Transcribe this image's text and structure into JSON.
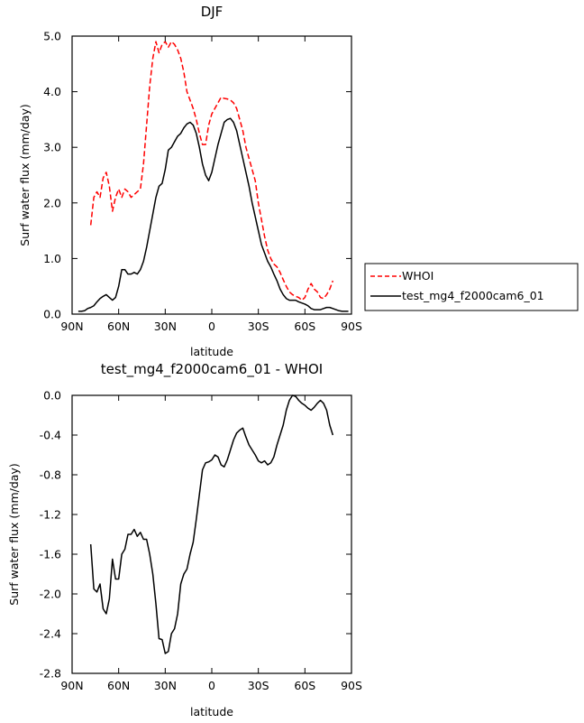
{
  "chart_data": [
    {
      "type": "line",
      "title": "DJF",
      "xlabel": "latitude",
      "ylabel": "Surf water flux (mm/day)",
      "xlim": [
        90,
        -90
      ],
      "ylim": [
        0,
        5
      ],
      "x_ticks": [
        90,
        60,
        30,
        0,
        -30,
        -60,
        -90
      ],
      "x_tick_labels": [
        "90N",
        "60N",
        "30N",
        "0",
        "30S",
        "60S",
        "90S"
      ],
      "y_ticks": [
        0,
        1,
        2,
        3,
        4,
        5
      ],
      "y_tick_labels": [
        "0.0",
        "1.0",
        "2.0",
        "3.0",
        "4.0",
        "5.0"
      ],
      "legend_position": "right",
      "series": [
        {
          "name": "WHOI",
          "color": "#ff0000",
          "dash": "dashed",
          "x": [
            78,
            76,
            74,
            72,
            70,
            68,
            66,
            64,
            62,
            60,
            58,
            56,
            54,
            52,
            50,
            48,
            46,
            44,
            42,
            40,
            38,
            36,
            34,
            32,
            30,
            28,
            26,
            24,
            22,
            20,
            18,
            16,
            14,
            12,
            10,
            8,
            6,
            4,
            2,
            0,
            -2,
            -4,
            -6,
            -8,
            -10,
            -12,
            -14,
            -16,
            -18,
            -20,
            -22,
            -24,
            -26,
            -28,
            -30,
            -32,
            -34,
            -36,
            -38,
            -40,
            -42,
            -44,
            -46,
            -48,
            -50,
            -52,
            -54,
            -56,
            -58,
            -60,
            -62,
            -64,
            -66,
            -68,
            -70,
            -72,
            -74,
            -76,
            -78
          ],
          "y": [
            1.6,
            2.1,
            2.2,
            2.1,
            2.45,
            2.55,
            2.3,
            1.85,
            2.1,
            2.25,
            2.1,
            2.25,
            2.2,
            2.1,
            2.15,
            2.2,
            2.25,
            2.7,
            3.4,
            4.1,
            4.6,
            4.9,
            4.7,
            4.85,
            4.9,
            4.8,
            4.9,
            4.85,
            4.75,
            4.6,
            4.35,
            4.0,
            3.85,
            3.7,
            3.5,
            3.25,
            3.05,
            3.05,
            3.4,
            3.6,
            3.7,
            3.8,
            3.9,
            3.88,
            3.87,
            3.85,
            3.8,
            3.7,
            3.5,
            3.3,
            3.0,
            2.8,
            2.6,
            2.4,
            2.0,
            1.7,
            1.4,
            1.15,
            1.0,
            0.9,
            0.85,
            0.75,
            0.62,
            0.5,
            0.4,
            0.35,
            0.32,
            0.3,
            0.25,
            0.3,
            0.45,
            0.55,
            0.45,
            0.4,
            0.3,
            0.28,
            0.35,
            0.45,
            0.6
          ]
        },
        {
          "name": "test_mg4_f2000cam6_01",
          "color": "#000000",
          "dash": "solid",
          "x": [
            86,
            84,
            82,
            80,
            78,
            76,
            74,
            72,
            70,
            68,
            66,
            64,
            62,
            60,
            58,
            56,
            54,
            52,
            50,
            48,
            46,
            44,
            42,
            40,
            38,
            36,
            34,
            32,
            30,
            28,
            26,
            24,
            22,
            20,
            18,
            16,
            14,
            12,
            10,
            8,
            6,
            4,
            2,
            0,
            -2,
            -4,
            -6,
            -8,
            -10,
            -12,
            -14,
            -16,
            -18,
            -20,
            -22,
            -24,
            -26,
            -28,
            -30,
            -32,
            -34,
            -36,
            -38,
            -40,
            -42,
            -44,
            -46,
            -48,
            -50,
            -52,
            -54,
            -56,
            -58,
            -60,
            -62,
            -64,
            -66,
            -68,
            -70,
            -72,
            -74,
            -76,
            -78,
            -80,
            -82,
            -84,
            -86,
            -88
          ],
          "y": [
            0.05,
            0.05,
            0.06,
            0.1,
            0.12,
            0.15,
            0.22,
            0.28,
            0.32,
            0.35,
            0.3,
            0.25,
            0.3,
            0.5,
            0.8,
            0.8,
            0.72,
            0.72,
            0.75,
            0.72,
            0.8,
            0.95,
            1.2,
            1.5,
            1.8,
            2.1,
            2.3,
            2.35,
            2.6,
            2.95,
            3.0,
            3.1,
            3.2,
            3.25,
            3.35,
            3.42,
            3.45,
            3.4,
            3.25,
            3.0,
            2.7,
            2.5,
            2.4,
            2.55,
            2.8,
            3.05,
            3.25,
            3.45,
            3.5,
            3.52,
            3.45,
            3.3,
            3.05,
            2.8,
            2.55,
            2.3,
            2.0,
            1.75,
            1.5,
            1.25,
            1.1,
            0.95,
            0.85,
            0.72,
            0.6,
            0.45,
            0.35,
            0.28,
            0.25,
            0.25,
            0.25,
            0.22,
            0.2,
            0.18,
            0.15,
            0.1,
            0.08,
            0.08,
            0.08,
            0.1,
            0.12,
            0.12,
            0.1,
            0.08,
            0.06,
            0.05,
            0.05,
            0.05
          ]
        }
      ]
    },
    {
      "type": "line",
      "title": "test_mg4_f2000cam6_01 - WHOI",
      "xlabel": "latitude",
      "ylabel": "Surf water flux (mm/day)",
      "xlim": [
        90,
        -90
      ],
      "ylim": [
        -2.8,
        0
      ],
      "x_ticks": [
        90,
        60,
        30,
        0,
        -30,
        -60,
        -90
      ],
      "x_tick_labels": [
        "90N",
        "60N",
        "30N",
        "0",
        "30S",
        "60S",
        "90S"
      ],
      "y_ticks": [
        0,
        -0.4,
        -0.8,
        -1.2,
        -1.6,
        -2.0,
        -2.4,
        -2.8
      ],
      "y_tick_labels": [
        "0.0",
        "-0.4",
        "-0.8",
        "-1.2",
        "-1.6",
        "-2.0",
        "-2.4",
        "-2.8"
      ],
      "series": [
        {
          "name": "",
          "color": "#000000",
          "dash": "solid",
          "x": [
            78,
            76,
            74,
            72,
            70,
            68,
            66,
            64,
            62,
            60,
            58,
            56,
            54,
            52,
            50,
            48,
            46,
            44,
            42,
            40,
            38,
            36,
            34,
            32,
            30,
            28,
            26,
            24,
            22,
            20,
            18,
            16,
            14,
            12,
            10,
            8,
            6,
            4,
            2,
            0,
            -2,
            -4,
            -6,
            -8,
            -10,
            -12,
            -14,
            -16,
            -18,
            -20,
            -22,
            -24,
            -26,
            -28,
            -30,
            -32,
            -34,
            -36,
            -38,
            -40,
            -42,
            -44,
            -46,
            -48,
            -50,
            -52,
            -54,
            -56,
            -58,
            -60,
            -62,
            -64,
            -66,
            -68,
            -70,
            -72,
            -74,
            -76,
            -78
          ],
          "y": [
            -1.5,
            -1.95,
            -1.98,
            -1.9,
            -2.15,
            -2.2,
            -2.05,
            -1.65,
            -1.85,
            -1.85,
            -1.6,
            -1.55,
            -1.4,
            -1.4,
            -1.35,
            -1.42,
            -1.38,
            -1.45,
            -1.45,
            -1.6,
            -1.8,
            -2.1,
            -2.45,
            -2.46,
            -2.6,
            -2.58,
            -2.4,
            -2.35,
            -2.2,
            -1.9,
            -1.8,
            -1.75,
            -1.6,
            -1.48,
            -1.25,
            -1.0,
            -0.75,
            -0.68,
            -0.67,
            -0.65,
            -0.6,
            -0.62,
            -0.7,
            -0.72,
            -0.65,
            -0.55,
            -0.45,
            -0.38,
            -0.35,
            -0.33,
            -0.42,
            -0.5,
            -0.55,
            -0.6,
            -0.66,
            -0.68,
            -0.66,
            -0.7,
            -0.68,
            -0.62,
            -0.5,
            -0.4,
            -0.3,
            -0.15,
            -0.05,
            0.0,
            -0.01,
            -0.05,
            -0.08,
            -0.1,
            -0.13,
            -0.15,
            -0.12,
            -0.08,
            -0.05,
            -0.08,
            -0.15,
            -0.3,
            -0.4
          ]
        }
      ]
    }
  ]
}
